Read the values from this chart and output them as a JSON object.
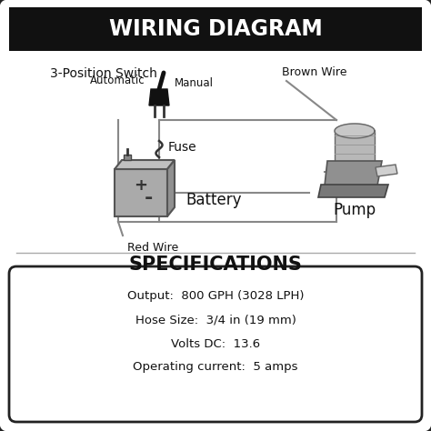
{
  "title": "WIRING DIAGRAM",
  "spec_title": "SPECIFICATIONS",
  "section_label": "3-Position Switch",
  "labels": {
    "automatic": "Automatic",
    "manual": "Manual",
    "brown_wire": "Brown Wire",
    "fuse": "Fuse",
    "battery": "Battery",
    "pump": "Pump",
    "red_wire": "Red Wire"
  },
  "specs": [
    "Output:  800 GPH (3028 LPH)",
    "Hose Size:  3/4 in (19 mm)",
    "Volts DC:  13.6",
    "Operating current:  5 amps"
  ],
  "bg_color": "#ffffff",
  "title_bg": "#111111",
  "title_color": "#ffffff",
  "border_color": "#222222",
  "text_color": "#111111",
  "wire_color": "#888888",
  "diagram_bg": "#ffffff",
  "spec_bg": "#ffffff"
}
